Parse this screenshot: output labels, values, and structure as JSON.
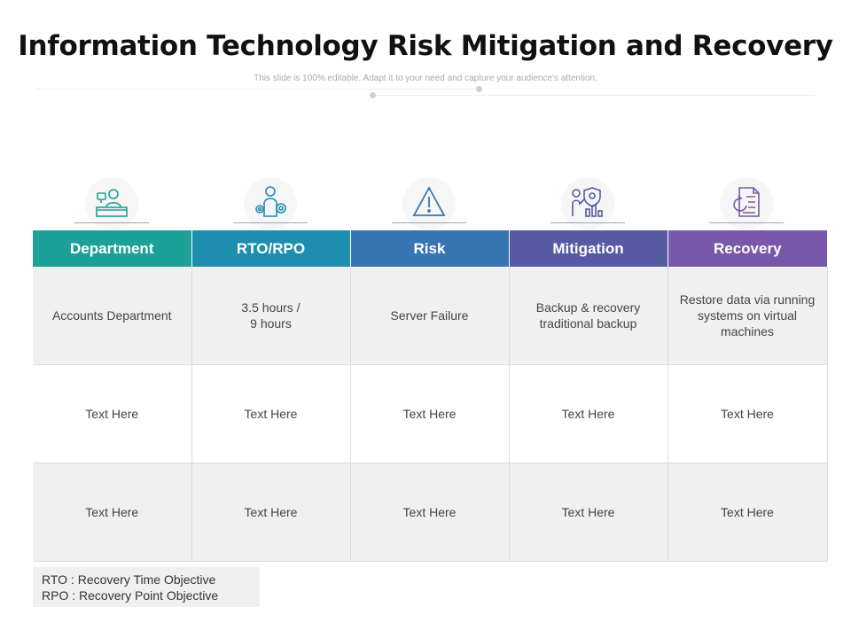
{
  "slide": {
    "title": "Information Technology Risk  Mitigation and Recovery",
    "subtitle": "This slide is 100% editable. Adapt it to your need and capture your audience's attention."
  },
  "icons": [
    "receptionist-desk-icon",
    "person-gears-icon",
    "warning-triangle-icon",
    "shield-chart-person-icon",
    "document-recovery-icon"
  ],
  "table": {
    "headers": [
      {
        "label": "Department",
        "color": "#1ba197"
      },
      {
        "label": "RTO/RPO",
        "color": "#1d8eaf"
      },
      {
        "label": "Risk",
        "color": "#3a75b3"
      },
      {
        "label": "Mitigation",
        "color": "#565aa3"
      },
      {
        "label": "Recovery",
        "color": "#7a58a9"
      }
    ],
    "rows": [
      [
        "Accounts Department",
        "3.5 hours /\n9 hours",
        "Server Failure",
        "Backup & recovery\ntraditional backup",
        "Restore data via running\nsystems on virtual\nmachines"
      ],
      [
        "Text Here",
        "Text Here",
        "Text Here",
        "Text Here",
        "Text Here"
      ],
      [
        "Text Here",
        "Text Here",
        "Text Here",
        "Text Here",
        "Text Here"
      ]
    ]
  },
  "legend": {
    "rto": "RTO : Recovery Time Objective",
    "rpo": "RPO : Recovery Point Objective"
  }
}
